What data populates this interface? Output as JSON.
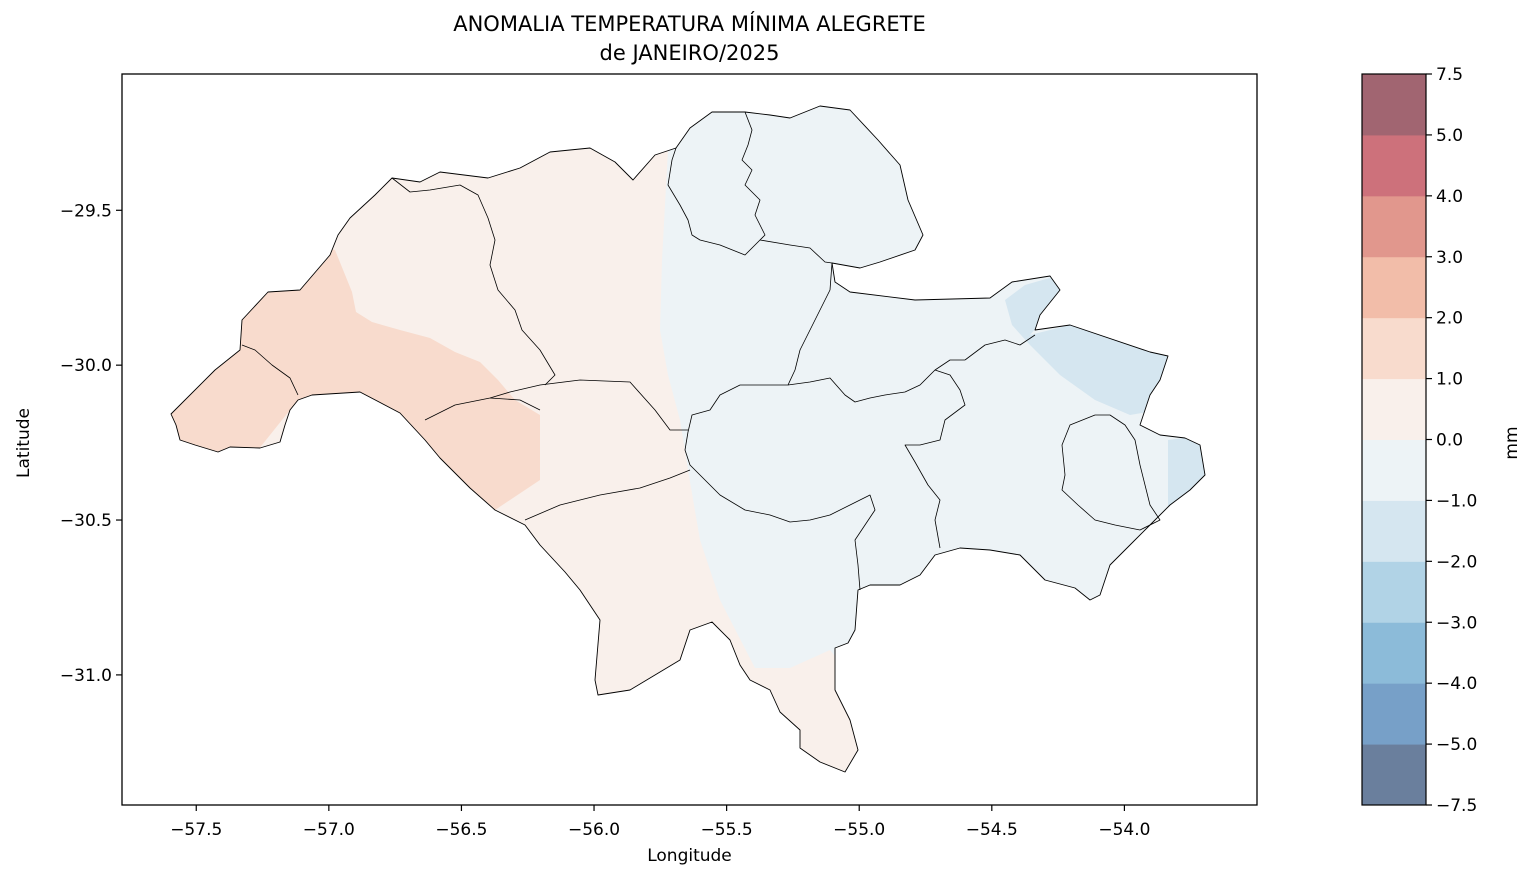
{
  "title": {
    "line1": "ANOMALIA TEMPERATURA MÍNIMA ALEGRETE",
    "line2": "de JANEIRO/2025"
  },
  "map": {
    "type": "choropleth",
    "xlabel": "Longitude",
    "ylabel": "Latitude",
    "xlim": [
      -57.78,
      -53.5
    ],
    "ylim": [
      -31.42,
      -29.06
    ],
    "xticks": [
      -57.5,
      -57.0,
      -56.5,
      -56.0,
      -55.5,
      -55.0,
      -54.5,
      -54.0
    ],
    "yticks": [
      -29.5,
      -30.0,
      -30.5,
      -31.0
    ],
    "xtick_labels": [
      "−57.5",
      "−57.0",
      "−56.5",
      "−56.0",
      "−55.5",
      "−55.0",
      "−54.5",
      "−54.0"
    ],
    "ytick_labels": [
      "−29.5",
      "−30.0",
      "−30.5",
      "−31.0"
    ],
    "region_fill_by_zone": {
      "west_anomaly_1_to_2": "#f8dbcd",
      "central_anomaly_0_to_1": "#f9f0eb",
      "east_anomaly_minus1_to_0": "#edf3f6",
      "northeast_patches_minus2_to_minus1": "#d5e6f0"
    },
    "outline_color": "#000000"
  },
  "colorbar": {
    "label": "mm",
    "boundaries": [
      -7.5,
      -5.0,
      -4.0,
      -3.0,
      -2.0,
      -1.0,
      0.0,
      1.0,
      2.0,
      3.0,
      4.0,
      5.0,
      7.5
    ],
    "tick_labels": [
      "−7.5",
      "−5.0",
      "−4.0",
      "−3.0",
      "−2.0",
      "−1.0",
      "0.0",
      "1.0",
      "2.0",
      "3.0",
      "4.0",
      "5.0",
      "7.5"
    ],
    "colors": [
      "#6a7f9d",
      "#77a0c8",
      "#8cbbd9",
      "#b1d3e6",
      "#d5e6f0",
      "#edf3f6",
      "#f9f0eb",
      "#f8dbcd",
      "#f2bda9",
      "#e1978d",
      "#cd717b",
      "#a16571"
    ]
  }
}
